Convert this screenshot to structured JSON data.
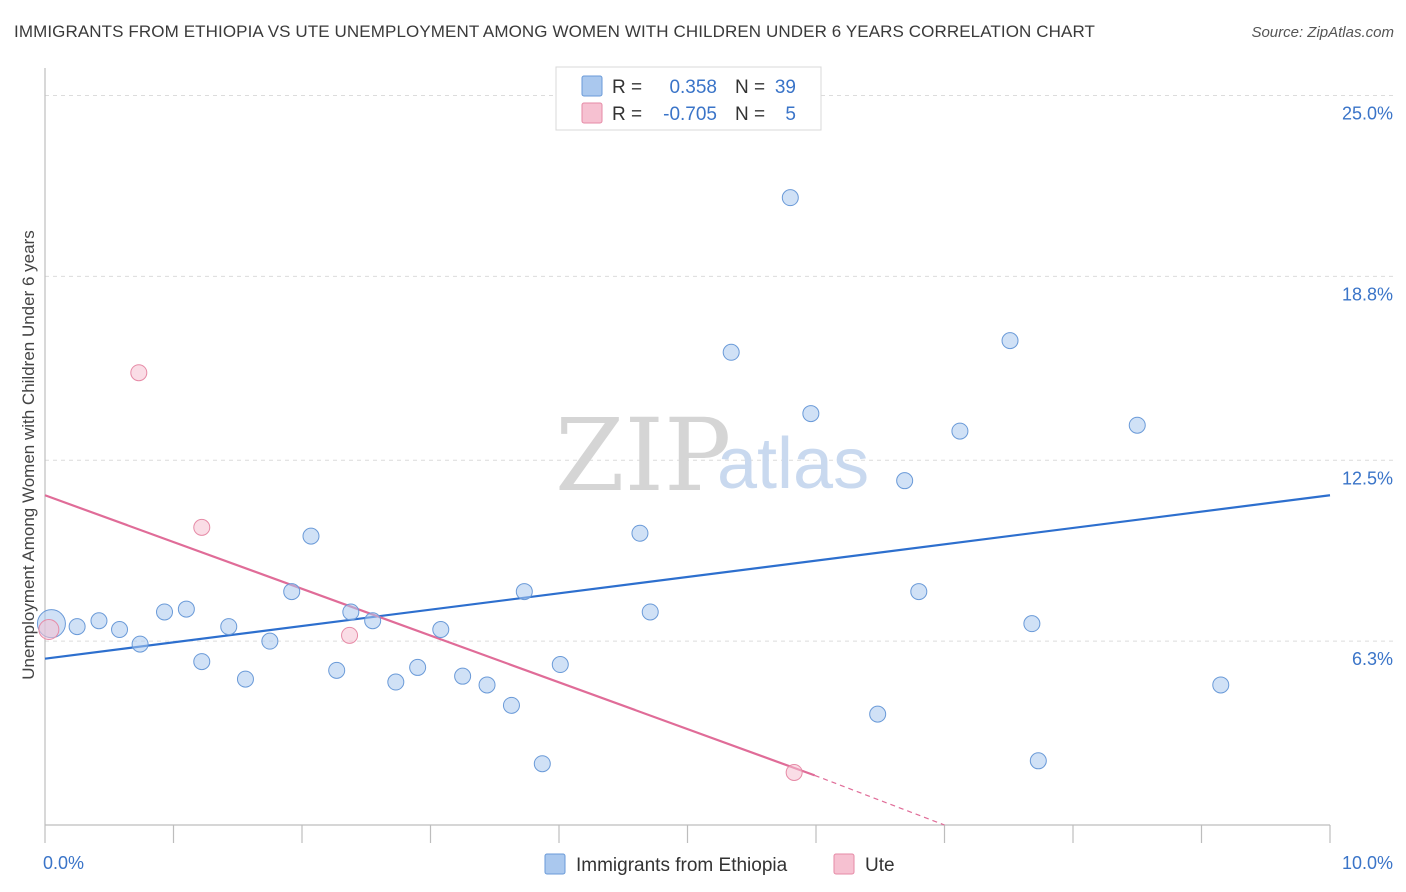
{
  "chart_data": {
    "type": "scatter",
    "title": "IMMIGRANTS FROM ETHIOPIA VS UTE UNEMPLOYMENT AMONG WOMEN WITH CHILDREN UNDER 6 YEARS CORRELATION CHART",
    "source": "Source: ZipAtlas.com",
    "xlabel": "",
    "ylabel": "Unemployment Among Women with Children Under 6 years",
    "xlim": [
      0,
      10
    ],
    "ylim": [
      0,
      25.6
    ],
    "x_tick_labels": [
      {
        "value": 0,
        "label": "0.0%"
      },
      {
        "value": 10,
        "label": "10.0%"
      }
    ],
    "y_tick_labels": [
      {
        "value": 25.0,
        "label": "25.0%"
      },
      {
        "value": 18.8,
        "label": "18.8%"
      },
      {
        "value": 12.5,
        "label": "12.5%"
      },
      {
        "value": 6.3,
        "label": "6.3%"
      }
    ],
    "grid": true,
    "watermark": {
      "zip": "ZIP",
      "atlas": "atlas"
    },
    "legend": {
      "r_label": "R =",
      "n_label": "N =",
      "entries": [
        {
          "r": "0.358",
          "n": "39"
        },
        {
          "r": "-0.705",
          "n": "5"
        }
      ]
    },
    "series": [
      {
        "name": "Immigrants from Ethiopia",
        "color": "#aac8ee",
        "edge": "#6a9ad8",
        "line_color": "#2d6fce",
        "trend": {
          "x0": 0.0,
          "y0": 5.7,
          "x1": 10.0,
          "y1": 11.3
        },
        "points": [
          {
            "x": 0.05,
            "y": 6.9,
            "big": true
          },
          {
            "x": 0.25,
            "y": 6.8
          },
          {
            "x": 0.42,
            "y": 7.0
          },
          {
            "x": 0.58,
            "y": 6.7
          },
          {
            "x": 0.74,
            "y": 6.2
          },
          {
            "x": 0.93,
            "y": 7.3
          },
          {
            "x": 1.1,
            "y": 7.4
          },
          {
            "x": 1.22,
            "y": 5.6
          },
          {
            "x": 1.43,
            "y": 6.8
          },
          {
            "x": 1.56,
            "y": 5.0
          },
          {
            "x": 1.75,
            "y": 6.3
          },
          {
            "x": 1.92,
            "y": 8.0
          },
          {
            "x": 2.07,
            "y": 9.9
          },
          {
            "x": 2.27,
            "y": 5.3
          },
          {
            "x": 2.38,
            "y": 7.3
          },
          {
            "x": 2.55,
            "y": 7.0
          },
          {
            "x": 2.73,
            "y": 4.9
          },
          {
            "x": 2.9,
            "y": 5.4
          },
          {
            "x": 3.08,
            "y": 6.7
          },
          {
            "x": 3.25,
            "y": 5.1
          },
          {
            "x": 3.44,
            "y": 4.8
          },
          {
            "x": 3.63,
            "y": 4.1
          },
          {
            "x": 3.73,
            "y": 8.0
          },
          {
            "x": 3.87,
            "y": 2.1
          },
          {
            "x": 4.01,
            "y": 5.5
          },
          {
            "x": 4.63,
            "y": 10.0
          },
          {
            "x": 4.71,
            "y": 7.3
          },
          {
            "x": 5.34,
            "y": 16.2
          },
          {
            "x": 5.8,
            "y": 21.5
          },
          {
            "x": 5.96,
            "y": 14.1
          },
          {
            "x": 6.48,
            "y": 3.8
          },
          {
            "x": 6.69,
            "y": 11.8
          },
          {
            "x": 6.8,
            "y": 8.0
          },
          {
            "x": 7.12,
            "y": 13.5
          },
          {
            "x": 7.51,
            "y": 16.6
          },
          {
            "x": 7.68,
            "y": 6.9
          },
          {
            "x": 7.73,
            "y": 2.2
          },
          {
            "x": 8.5,
            "y": 13.7
          },
          {
            "x": 9.15,
            "y": 4.8
          }
        ]
      },
      {
        "name": "Ute",
        "color": "#f6c1d1",
        "edge": "#e68aa6",
        "line_color": "#e06c98",
        "trend": {
          "x0": 0.0,
          "y0": 11.3,
          "x1": 5.99,
          "y1": 1.7
        },
        "trend_dashed": {
          "x0": 5.99,
          "y0": 1.7,
          "x1": 7.0,
          "y1": 0.0
        },
        "points": [
          {
            "x": 0.03,
            "y": 6.7,
            "big": true
          },
          {
            "x": 0.73,
            "y": 15.5
          },
          {
            "x": 1.22,
            "y": 10.2
          },
          {
            "x": 2.37,
            "y": 6.5
          },
          {
            "x": 5.83,
            "y": 1.8
          }
        ]
      }
    ]
  }
}
